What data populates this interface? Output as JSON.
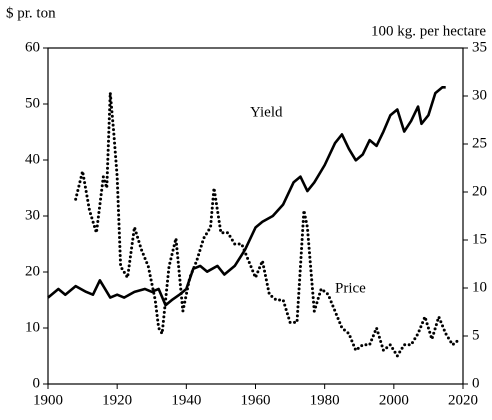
{
  "chart_data": {
    "type": "line",
    "ylabel": "$ pr. ton",
    "y2label": "100 kg. per hectare",
    "xlim": [
      1900,
      2020
    ],
    "xticks": [
      1900,
      1920,
      1940,
      1960,
      1980,
      2000,
      2020
    ],
    "ylim": [
      0,
      60
    ],
    "yticks": [
      0,
      10,
      20,
      30,
      40,
      50,
      60
    ],
    "y2lim": [
      0,
      35
    ],
    "y2ticks": [
      0,
      5,
      10,
      15,
      20,
      25,
      30,
      35
    ],
    "series": [
      {
        "name": "Yield",
        "axis": "y2",
        "color": "#000000",
        "line_style": "solid",
        "x": [
          1900,
          1903,
          1905,
          1908,
          1911,
          1913,
          1915,
          1918,
          1920,
          1922,
          1925,
          1928,
          1930,
          1932,
          1934,
          1936,
          1938,
          1940,
          1942,
          1944,
          1946,
          1949,
          1951,
          1954,
          1957,
          1960,
          1962,
          1965,
          1968,
          1971,
          1973,
          1975,
          1977,
          1980,
          1983,
          1985,
          1987,
          1989,
          1991,
          1993,
          1995,
          1997,
          1999,
          2001,
          2003,
          2005,
          2007,
          2008,
          2010,
          2012,
          2014,
          2015
        ],
        "values": [
          9.0,
          9.9,
          9.3,
          10.2,
          9.6,
          9.3,
          10.8,
          9.0,
          9.3,
          9.0,
          9.6,
          9.9,
          9.6,
          9.9,
          8.2,
          8.8,
          9.3,
          9.9,
          12.0,
          12.3,
          11.7,
          12.3,
          11.4,
          12.3,
          14.0,
          16.3,
          16.9,
          17.5,
          18.7,
          21.0,
          21.6,
          20.1,
          21.0,
          22.8,
          25.1,
          26.0,
          24.5,
          23.3,
          23.9,
          25.4,
          24.8,
          26.3,
          28.0,
          28.6,
          26.3,
          27.4,
          28.9,
          27.1,
          28.0,
          30.3,
          30.9,
          30.9
        ]
      },
      {
        "name": "Price",
        "axis": "y",
        "color": "#000000",
        "line_style": "dotted",
        "x": [
          1908,
          1910,
          1912,
          1914,
          1916,
          1917,
          1918,
          1919,
          1920,
          1921,
          1923,
          1925,
          1927,
          1929,
          1931,
          1932,
          1933,
          1935,
          1937,
          1939,
          1941,
          1943,
          1945,
          1947,
          1948,
          1950,
          1952,
          1954,
          1956,
          1958,
          1960,
          1962,
          1964,
          1966,
          1968,
          1970,
          1972,
          1974,
          1975,
          1977,
          1979,
          1981,
          1983,
          1985,
          1987,
          1989,
          1991,
          1993,
          1995,
          1997,
          1999,
          2001,
          2003,
          2005,
          2007,
          2009,
          2011,
          2013,
          2015,
          2017,
          2019
        ],
        "values": [
          33,
          38,
          31,
          27,
          37,
          35,
          52,
          45,
          37,
          21,
          19,
          28,
          24,
          21,
          15,
          10,
          9,
          21,
          26,
          13,
          19,
          22,
          26,
          28,
          35,
          27,
          27,
          25,
          25,
          22,
          19,
          22,
          16,
          15,
          15,
          11,
          11,
          31,
          28,
          13,
          17,
          16,
          13,
          10,
          9,
          6,
          7,
          7,
          10,
          6,
          7,
          5,
          7,
          7,
          9,
          12,
          8,
          12,
          9,
          7,
          8
        ]
      }
    ]
  }
}
